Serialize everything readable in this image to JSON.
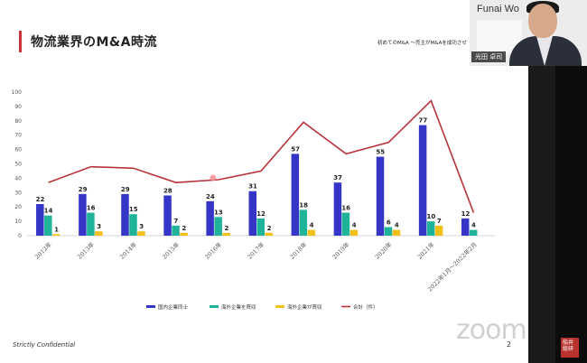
{
  "slide": {
    "title": "物流業界のM&A時流",
    "subtitle": "初めてのM&A ～売主がM&Aを成功させ",
    "footer_left": "Strictly Confidential",
    "page_number": "2",
    "accent_color": "#c8323c"
  },
  "watermark": {
    "text": "zoom"
  },
  "camera": {
    "brand": "Funai Wo",
    "presenter_name": "光田 卓司"
  },
  "thumbnail": {
    "text": "船井総研"
  },
  "chart_data": {
    "type": "bar",
    "title": "",
    "ylim": [
      0,
      100
    ],
    "y_ticks": [
      0,
      10,
      20,
      30,
      40,
      50,
      60,
      70,
      80,
      90,
      100
    ],
    "categories": [
      "2012年",
      "2013年",
      "2014年",
      "2015年",
      "2016年",
      "2017年",
      "2018年",
      "2019年",
      "2020年",
      "2021年",
      "2022年1月～2022年2月"
    ],
    "grid": false,
    "legend_position": "bottom",
    "series": [
      {
        "name": "国内企業同士",
        "kind": "bar",
        "color": "#3535c8",
        "values": [
          22,
          29,
          29,
          28,
          24,
          31,
          57,
          37,
          55,
          77,
          12
        ]
      },
      {
        "name": "海外企業を買収",
        "kind": "bar",
        "color": "#1fb39a",
        "values": [
          14,
          16,
          15,
          7,
          13,
          12,
          18,
          16,
          6,
          10,
          4
        ]
      },
      {
        "name": "海外企業が買収",
        "kind": "bar",
        "color": "#f2c016",
        "values": [
          1,
          3,
          3,
          2,
          2,
          2,
          4,
          4,
          4,
          7,
          0
        ]
      },
      {
        "name": "合計（件）",
        "kind": "line",
        "color": "#b8323c",
        "values": [
          37,
          48,
          47,
          37,
          39,
          45,
          79,
          57,
          65,
          94,
          16
        ]
      }
    ],
    "data_labels": [
      [
        "22",
        "29",
        "29",
        "28",
        "24",
        "31",
        "57",
        "37",
        "55",
        "77",
        "12"
      ],
      [
        "14",
        "16",
        "15",
        "7",
        "13",
        "12",
        "18",
        "16",
        "6",
        "10",
        "4"
      ],
      [
        "1",
        "3",
        "3",
        "2",
        "2",
        "2",
        "4",
        "4",
        "4",
        "7",
        ""
      ]
    ]
  }
}
